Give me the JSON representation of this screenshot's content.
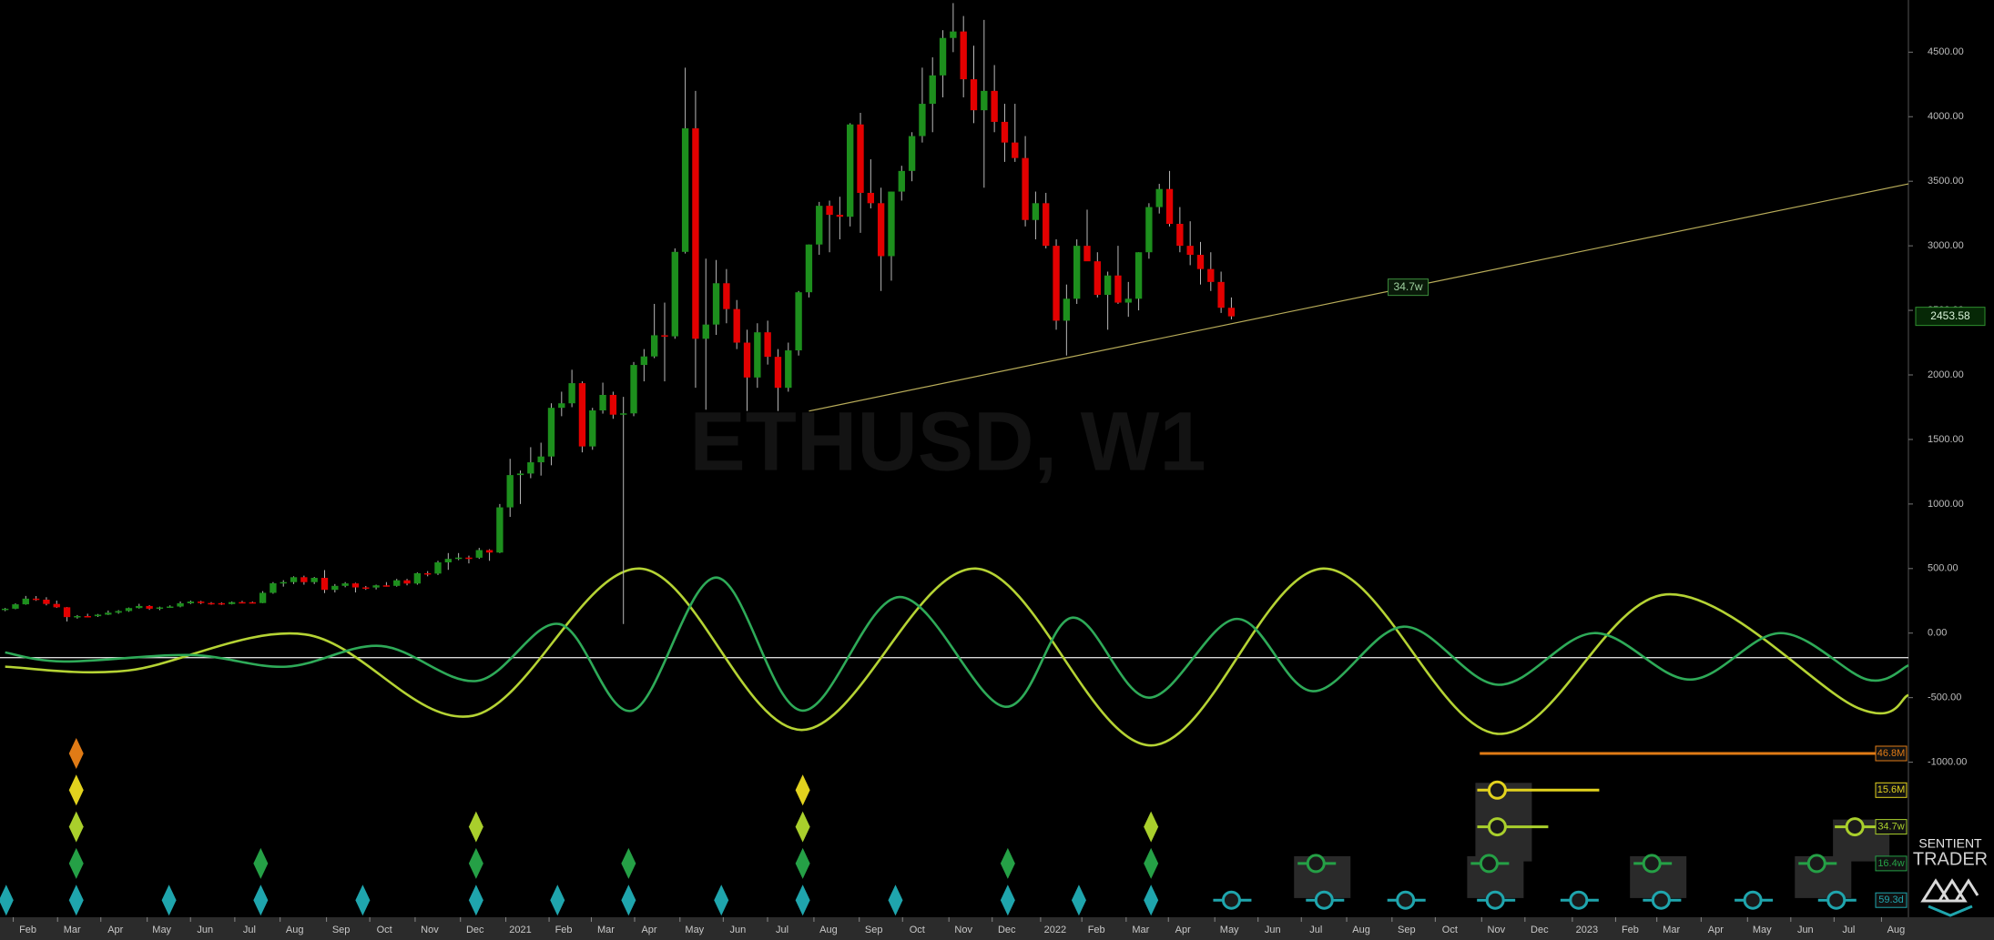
{
  "chart_data": {
    "type": "candlestick",
    "title": "ETHUSD, W1",
    "xlim": [
      -0.5,
      184.7
    ],
    "xticks": [
      {
        "value": 2.2,
        "label": "Feb"
      },
      {
        "value": 6.5,
        "label": "Mar"
      },
      {
        "value": 10.7,
        "label": "Apr"
      },
      {
        "value": 15.2,
        "label": "May"
      },
      {
        "value": 19.4,
        "label": "Jun"
      },
      {
        "value": 23.7,
        "label": "Jul"
      },
      {
        "value": 28.1,
        "label": "Aug"
      },
      {
        "value": 32.6,
        "label": "Sep"
      },
      {
        "value": 36.8,
        "label": "Oct"
      },
      {
        "value": 41.2,
        "label": "Nov"
      },
      {
        "value": 45.6,
        "label": "Dec"
      },
      {
        "value": 50,
        "label": "2021"
      },
      {
        "value": 54.2,
        "label": "Feb"
      },
      {
        "value": 58.3,
        "label": "Mar"
      },
      {
        "value": 62.5,
        "label": "Apr"
      },
      {
        "value": 66.9,
        "label": "May"
      },
      {
        "value": 71.1,
        "label": "Jun"
      },
      {
        "value": 75.4,
        "label": "Jul"
      },
      {
        "value": 79.9,
        "label": "Aug"
      },
      {
        "value": 84.3,
        "label": "Sep"
      },
      {
        "value": 88.5,
        "label": "Oct"
      },
      {
        "value": 93,
        "label": "Nov"
      },
      {
        "value": 97.2,
        "label": "Dec"
      },
      {
        "value": 101.9,
        "label": "2022"
      },
      {
        "value": 105.9,
        "label": "Feb"
      },
      {
        "value": 110.2,
        "label": "Mar"
      },
      {
        "value": 114.3,
        "label": "Apr"
      },
      {
        "value": 118.8,
        "label": "May"
      },
      {
        "value": 123,
        "label": "Jun"
      },
      {
        "value": 127.2,
        "label": "Jul"
      },
      {
        "value": 131.6,
        "label": "Aug"
      },
      {
        "value": 136,
        "label": "Sep"
      },
      {
        "value": 140.2,
        "label": "Oct"
      },
      {
        "value": 144.7,
        "label": "Nov"
      },
      {
        "value": 148.9,
        "label": "Dec"
      },
      {
        "value": 153.5,
        "label": "2023"
      },
      {
        "value": 157.7,
        "label": "Feb"
      },
      {
        "value": 161.7,
        "label": "Mar"
      },
      {
        "value": 166,
        "label": "Apr"
      },
      {
        "value": 170.5,
        "label": "May"
      },
      {
        "value": 174.7,
        "label": "Jun"
      },
      {
        "value": 178.9,
        "label": "Jul"
      },
      {
        "value": 183.5,
        "label": "Aug"
      }
    ],
    "ylim": [
      -2201,
      4904
    ],
    "yticks": [
      {
        "value": 4500,
        "label": "4500.00"
      },
      {
        "value": 4000,
        "label": "4000.00"
      },
      {
        "value": 3500,
        "label": "3500.00"
      },
      {
        "value": 3000,
        "label": "3000.00"
      },
      {
        "value": 2500,
        "label": "2500.00"
      },
      {
        "value": 2000,
        "label": "2000.00"
      },
      {
        "value": 1500,
        "label": "1500.00"
      },
      {
        "value": 1000,
        "label": "1000.00"
      },
      {
        "value": 500,
        "label": "500.00"
      },
      {
        "value": 0,
        "label": "0.00"
      },
      {
        "value": -500,
        "label": "-500.00"
      },
      {
        "value": -1000,
        "label": "-1000.00"
      }
    ],
    "candles": {
      "up_color": "#1d8f1d",
      "down_color": "#e30000",
      "wick_color": "#b8b8b8",
      "ohlc": [
        [
          180,
          195,
          170,
          189
        ],
        [
          189,
          230,
          185,
          223
        ],
        [
          223,
          288,
          220,
          267
        ],
        [
          267,
          287,
          250,
          259
        ],
        [
          259,
          278,
          215,
          226
        ],
        [
          226,
          252,
          195,
          200
        ],
        [
          200,
          202,
          90,
          124
        ],
        [
          124,
          140,
          112,
          132
        ],
        [
          132,
          150,
          125,
          131
        ],
        [
          131,
          148,
          125,
          143
        ],
        [
          143,
          175,
          140,
          158
        ],
        [
          158,
          178,
          150,
          171
        ],
        [
          171,
          198,
          165,
          194
        ],
        [
          194,
          227,
          190,
          210
        ],
        [
          210,
          216,
          180,
          189
        ],
        [
          189,
          205,
          178,
          199
        ],
        [
          199,
          215,
          195,
          206
        ],
        [
          206,
          245,
          200,
          231
        ],
        [
          231,
          252,
          225,
          244
        ],
        [
          244,
          250,
          225,
          233
        ],
        [
          233,
          240,
          220,
          232
        ],
        [
          232,
          238,
          218,
          225
        ],
        [
          225,
          245,
          222,
          240
        ],
        [
          240,
          250,
          233,
          239
        ],
        [
          239,
          245,
          230,
          233
        ],
        [
          233,
          325,
          232,
          312
        ],
        [
          312,
          395,
          305,
          386
        ],
        [
          386,
          410,
          360,
          395
        ],
        [
          395,
          440,
          380,
          433
        ],
        [
          433,
          445,
          375,
          395
        ],
        [
          395,
          435,
          380,
          428
        ],
        [
          428,
          488,
          310,
          335
        ],
        [
          335,
          380,
          315,
          366
        ],
        [
          366,
          395,
          355,
          385
        ],
        [
          385,
          390,
          315,
          354
        ],
        [
          354,
          365,
          335,
          353
        ],
        [
          353,
          375,
          338,
          370
        ],
        [
          370,
          395,
          360,
          366
        ],
        [
          366,
          420,
          360,
          409
        ],
        [
          409,
          420,
          370,
          384
        ],
        [
          384,
          470,
          375,
          464
        ],
        [
          464,
          480,
          440,
          461
        ],
        [
          461,
          560,
          450,
          548
        ],
        [
          548,
          620,
          490,
          575
        ],
        [
          575,
          620,
          565,
          585
        ],
        [
          585,
          600,
          540,
          584
        ],
        [
          584,
          660,
          575,
          643
        ],
        [
          643,
          650,
          560,
          624
        ],
        [
          624,
          1000,
          620,
          974
        ],
        [
          974,
          1350,
          900,
          1224
        ],
        [
          1224,
          1260,
          1000,
          1236
        ],
        [
          1236,
          1440,
          1200,
          1323
        ],
        [
          1323,
          1475,
          1220,
          1368
        ],
        [
          1368,
          1780,
          1300,
          1745
        ],
        [
          1745,
          1870,
          1680,
          1780
        ],
        [
          1780,
          2040,
          1750,
          1936
        ],
        [
          1936,
          1950,
          1400,
          1446
        ],
        [
          1446,
          1745,
          1420,
          1725
        ],
        [
          1725,
          1940,
          1700,
          1845
        ],
        [
          1845,
          1870,
          1660,
          1692
        ],
        [
          1692,
          1830,
          70,
          1702
        ],
        [
          1702,
          2100,
          1680,
          2077
        ],
        [
          2077,
          2200,
          1950,
          2143
        ],
        [
          2143,
          2550,
          2130,
          2307
        ],
        [
          2307,
          2560,
          1950,
          2299
        ],
        [
          2299,
          2980,
          2280,
          2953
        ],
        [
          2953,
          4380,
          2940,
          3910
        ],
        [
          3910,
          4200,
          1900,
          2280
        ],
        [
          2280,
          2900,
          1730,
          2390
        ],
        [
          2390,
          2890,
          2310,
          2710
        ],
        [
          2710,
          2820,
          2400,
          2510
        ],
        [
          2510,
          2580,
          2200,
          2250
        ],
        [
          2250,
          2350,
          1720,
          1980
        ],
        [
          1980,
          2400,
          1900,
          2330
        ],
        [
          2330,
          2420,
          2080,
          2140
        ],
        [
          2140,
          2200,
          1720,
          1900
        ],
        [
          1900,
          2250,
          1870,
          2190
        ],
        [
          2190,
          2650,
          2150,
          2640
        ],
        [
          2640,
          3010,
          2600,
          3010
        ],
        [
          3010,
          3340,
          2930,
          3310
        ],
        [
          3310,
          3350,
          2950,
          3240
        ],
        [
          3240,
          3380,
          3050,
          3225
        ],
        [
          3225,
          3950,
          3150,
          3940
        ],
        [
          3940,
          4030,
          3100,
          3410
        ],
        [
          3410,
          3670,
          3290,
          3330
        ],
        [
          3330,
          3450,
          2650,
          2920
        ],
        [
          2920,
          3420,
          2730,
          3420
        ],
        [
          3420,
          3620,
          3350,
          3580
        ],
        [
          3580,
          3880,
          3500,
          3850
        ],
        [
          3850,
          4380,
          3800,
          4100
        ],
        [
          4100,
          4460,
          3880,
          4320
        ],
        [
          4320,
          4670,
          4150,
          4610
        ],
        [
          4610,
          4880,
          4500,
          4660
        ],
        [
          4660,
          4780,
          4150,
          4290
        ],
        [
          4290,
          4550,
          3950,
          4050
        ],
        [
          4050,
          4750,
          3450,
          4200
        ],
        [
          4200,
          4400,
          3880,
          3960
        ],
        [
          3960,
          4100,
          3650,
          3800
        ],
        [
          3800,
          4100,
          3650,
          3680
        ],
        [
          3680,
          3850,
          3150,
          3200
        ],
        [
          3200,
          3420,
          3050,
          3330
        ],
        [
          3330,
          3410,
          2980,
          3000
        ],
        [
          3000,
          3050,
          2350,
          2420
        ],
        [
          2420,
          2700,
          2150,
          2590
        ],
        [
          2590,
          3050,
          2550,
          3000
        ],
        [
          3000,
          3280,
          2900,
          2880
        ],
        [
          2880,
          2950,
          2600,
          2620
        ],
        [
          2620,
          2800,
          2350,
          2770
        ],
        [
          2770,
          3000,
          2550,
          2560
        ],
        [
          2560,
          2720,
          2450,
          2590
        ],
        [
          2590,
          2950,
          2500,
          2950
        ],
        [
          2950,
          3330,
          2900,
          3300
        ],
        [
          3300,
          3480,
          3250,
          3440
        ],
        [
          3440,
          3580,
          3150,
          3170
        ],
        [
          3170,
          3300,
          2950,
          3000
        ],
        [
          3000,
          3190,
          2850,
          2930
        ],
        [
          2930,
          3030,
          2700,
          2820
        ],
        [
          2820,
          2950,
          2650,
          2720
        ],
        [
          2720,
          2800,
          2480,
          2520
        ],
        [
          2520,
          2600,
          2430,
          2453.58
        ]
      ]
    },
    "trendline": {
      "label": "34.7w",
      "color": "#b9ad5a",
      "x": [
        78,
        184.7
      ],
      "values": [
        1720,
        3480
      ]
    },
    "hline": -190,
    "waves": [
      {
        "color": "#b5d334",
        "x": [
          0,
          11.9,
          29.1,
          45.4,
          61.6,
          77.3,
          94.2,
          111.2,
          127.9,
          144.8,
          161.2,
          179.8,
          184.7
        ],
        "values": [
          -260,
          -290,
          -10,
          -640,
          500,
          -750,
          500,
          -870,
          500,
          -780,
          300,
          -580,
          -480
        ]
      },
      {
        "color": "#2eaa58",
        "x": [
          0,
          5.7,
          18,
          27.3,
          36.5,
          45.8,
          53.8,
          60.9,
          69,
          77.3,
          86.8,
          97,
          103.6,
          111,
          119.5,
          126.9,
          135.7,
          144.9,
          154.2,
          163.5,
          172.3,
          180.7,
          184.7
        ],
        "values": [
          -150,
          -220,
          -170,
          -260,
          -100,
          -370,
          70,
          -600,
          430,
          -600,
          280,
          -570,
          120,
          -500,
          110,
          -450,
          50,
          -400,
          0,
          -360,
          0,
          -360,
          -250
        ]
      }
    ],
    "cycles": [
      {
        "name": "46.8M",
        "color": "#e07b16",
        "diamonds": [
          6.9
        ],
        "projections": [],
        "line_from": 143.1
      },
      {
        "name": "15.6M",
        "color": "#e2d21e",
        "diamonds": [
          6.9,
          77.4
        ],
        "projections": [
          144.8
        ]
      },
      {
        "name": "34.7w",
        "color": "#a9cf2c",
        "diamonds": [
          6.9,
          45.7,
          77.4,
          111.2
        ],
        "projections": [
          144.8,
          179.5
        ]
      },
      {
        "name": "16.4w",
        "color": "#25a046",
        "diamonds": [
          6.9,
          24.8,
          45.7,
          60.5,
          77.4,
          97.3,
          111.2
        ],
        "projections": [
          127.2,
          144,
          159.8,
          175.8
        ]
      },
      {
        "name": "59.3d",
        "color": "#1fa5ad",
        "diamonds": [
          0.1,
          6.9,
          15.9,
          24.8,
          34.7,
          45.7,
          53.6,
          60.5,
          69.5,
          77.4,
          86.4,
          97.3,
          104.2,
          111.2
        ],
        "projections": [
          119,
          128,
          135.9,
          144.6,
          152.7,
          160.7,
          169.6,
          177.7
        ]
      }
    ],
    "brand": [
      "SENTIENT",
      "TRADER"
    ]
  }
}
